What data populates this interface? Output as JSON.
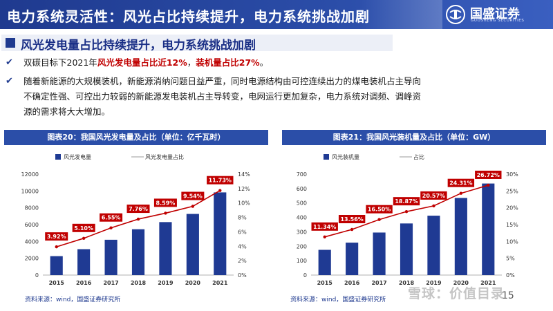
{
  "header": {
    "title": "电力系统灵活性：风光占比持续提升，电力系统挑战加剧",
    "logo_cn": "国盛证券",
    "logo_en": "GUOSHENG SECURITIES"
  },
  "section": {
    "title": "风光发电量占比持续提升，电力系统挑战加剧"
  },
  "bullets": [
    {
      "icon": "checkmark-icon",
      "parts": [
        "双碳目标下2021年",
        "风光发电量占比近12%",
        "，",
        "装机量占比27%",
        "。"
      ]
    },
    {
      "icon": "checkmark-icon",
      "lines": [
        "随着新能源的大规模装机，新能源消纳问题日益严重，同时电源结构由可控连续出力的煤电装机占主导向",
        "不确定性强、可控出力较弱的新能源发电装机占主导转变，电网运行更加复杂，电力系统对调频、调峰资",
        "源的需求将大大增加。"
      ]
    }
  ],
  "charts": {
    "left_title": "图表20：我国风光发电量及占比（单位：亿千瓦时）",
    "right_title": "图表21：我国风光装机量及占比（单位：GW）",
    "left_source": "资料来源：wind，国盛证券研究所",
    "right_source": "资料来源：wind，国盛证券研究所"
  },
  "chart_data": [
    {
      "type": "bar",
      "title": "图表20：我国风光发电量及占比（单位：亿千瓦时）",
      "categories": [
        "2015",
        "2016",
        "2017",
        "2018",
        "2019",
        "2020",
        "2021"
      ],
      "series": [
        {
          "name": "风光发电量",
          "kind": "bar",
          "axis": "left",
          "values": [
            2250,
            3080,
            4200,
            5450,
            6300,
            7270,
            9830
          ]
        },
        {
          "name": "风光发电量占比",
          "kind": "line",
          "axis": "right",
          "values": [
            3.92,
            5.1,
            6.55,
            7.76,
            8.59,
            9.54,
            11.73
          ]
        }
      ],
      "data_labels": [
        "3.92%",
        "5.10%",
        "6.55%",
        "7.76%",
        "8.59%",
        "9.54%",
        "11.73%"
      ],
      "y_left": {
        "min": 0,
        "max": 12000,
        "ticks": [
          "0",
          "2000",
          "4000",
          "6000",
          "8000",
          "10000",
          "12000"
        ]
      },
      "y_right": {
        "min": 0,
        "max": 14,
        "ticks": [
          "0%",
          "2%",
          "4%",
          "6%",
          "8%",
          "10%",
          "12%",
          "14%"
        ]
      },
      "colors": {
        "bar": "#1f3a93",
        "line": "#c00000",
        "label_bg": "#c00000"
      },
      "legend": "top"
    },
    {
      "type": "bar",
      "title": "图表21：我国风光装机量及占比（单位：GW）",
      "categories": [
        "2015",
        "2016",
        "2017",
        "2018",
        "2019",
        "2020",
        "2021"
      ],
      "series": [
        {
          "name": "风光装机量",
          "kind": "bar",
          "axis": "left",
          "values": [
            175,
            225,
            295,
            358,
            412,
            535,
            635
          ]
        },
        {
          "name": "占比",
          "kind": "line",
          "axis": "right",
          "values": [
            11.34,
            13.56,
            16.5,
            18.87,
            20.57,
            24.31,
            26.72
          ]
        }
      ],
      "data_labels": [
        "11.34%",
        "13.56%",
        "16.50%",
        "18.87%",
        "20.57%",
        "24.31%",
        "26.72%"
      ],
      "y_left": {
        "min": 0,
        "max": 700,
        "ticks": [
          "0",
          "100",
          "200",
          "300",
          "400",
          "500",
          "600",
          "700"
        ]
      },
      "y_right": {
        "min": 0,
        "max": 30,
        "ticks": [
          "0%",
          "5%",
          "10%",
          "15%",
          "20%",
          "25%",
          "30%"
        ]
      },
      "colors": {
        "bar": "#1f3a93",
        "line": "#c00000",
        "label_bg": "#c00000"
      },
      "legend": "top"
    }
  ],
  "footer": {
    "page": "15",
    "watermark": "雪球：价值目录"
  }
}
